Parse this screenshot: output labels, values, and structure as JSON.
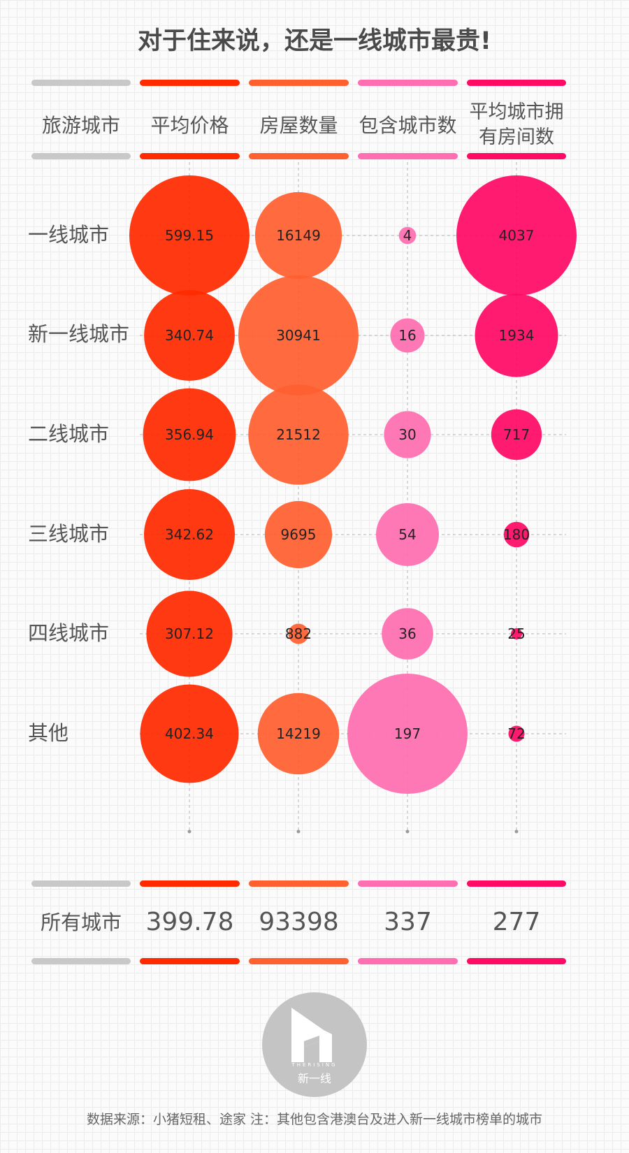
{
  "title": "对于住来说，还是一线城市最贵!",
  "headers": {
    "category": "旅游城市",
    "columns": [
      "平均价格",
      "房屋数量",
      "包含城市数",
      "平均城市拥有房间数"
    ]
  },
  "colors": {
    "grey": "#c8c8c8",
    "price": "#ff2a00",
    "count": "#ff6030",
    "cities": "#ff6eb0",
    "rooms": "#ff0a64"
  },
  "rows": [
    "一线城市",
    "新一线城市",
    "二线城市",
    "三线城市",
    "四线城市",
    "其他"
  ],
  "chart_data": {
    "type": "bubble",
    "title": "对于住来说，还是一线城市最贵!",
    "categories": [
      "一线城市",
      "新一线城市",
      "二线城市",
      "三线城市",
      "四线城市",
      "其他"
    ],
    "series": [
      {
        "name": "平均价格",
        "values": [
          599.15,
          340.74,
          356.94,
          342.62,
          307.12,
          402.34
        ]
      },
      {
        "name": "房屋数量",
        "values": [
          16149,
          30941,
          21512,
          9695,
          882,
          14219
        ]
      },
      {
        "name": "包含城市数",
        "values": [
          4,
          16,
          30,
          54,
          36,
          197
        ]
      },
      {
        "name": "平均城市拥有房间数",
        "values": [
          4037,
          1934,
          717,
          180,
          25,
          72
        ]
      }
    ],
    "grid": true
  },
  "totals": {
    "label": "所有城市",
    "values": [
      "399.78",
      "93398",
      "337",
      "277"
    ]
  },
  "logo": {
    "icon": "play-building-logo-icon",
    "subtitle_en": "THERISING",
    "subtitle_cn": "新一线"
  },
  "source": "数据来源：小猪短租、途家  注：其他包含港澳台及进入新一线城市榜单的城市"
}
